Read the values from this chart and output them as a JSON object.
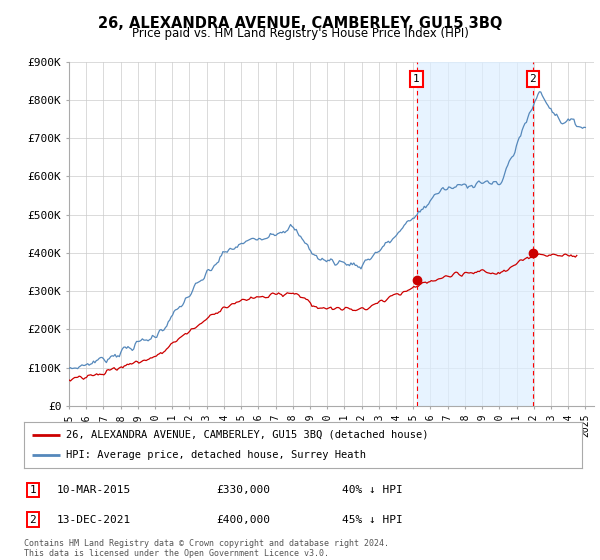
{
  "title": "26, ALEXANDRA AVENUE, CAMBERLEY, GU15 3BQ",
  "subtitle": "Price paid vs. HM Land Registry's House Price Index (HPI)",
  "ylim": [
    0,
    900000
  ],
  "xlim_start": 1995.0,
  "xlim_end": 2025.5,
  "red_line_label": "26, ALEXANDRA AVENUE, CAMBERLEY, GU15 3BQ (detached house)",
  "blue_line_label": "HPI: Average price, detached house, Surrey Heath",
  "marker1_x": 2015.19,
  "marker1_y": 330000,
  "marker1_label": "1",
  "marker1_date": "10-MAR-2015",
  "marker1_price": "£330,000",
  "marker1_pct": "40% ↓ HPI",
  "marker2_x": 2021.95,
  "marker2_y": 400000,
  "marker2_label": "2",
  "marker2_date": "13-DEC-2021",
  "marker2_price": "£400,000",
  "marker2_pct": "45% ↓ HPI",
  "footer": "Contains HM Land Registry data © Crown copyright and database right 2024.\nThis data is licensed under the Open Government Licence v3.0.",
  "bg_color": "#ffffff",
  "grid_color": "#cccccc",
  "red_color": "#cc0000",
  "blue_color": "#5588bb",
  "shade_color": "#ddeeff"
}
